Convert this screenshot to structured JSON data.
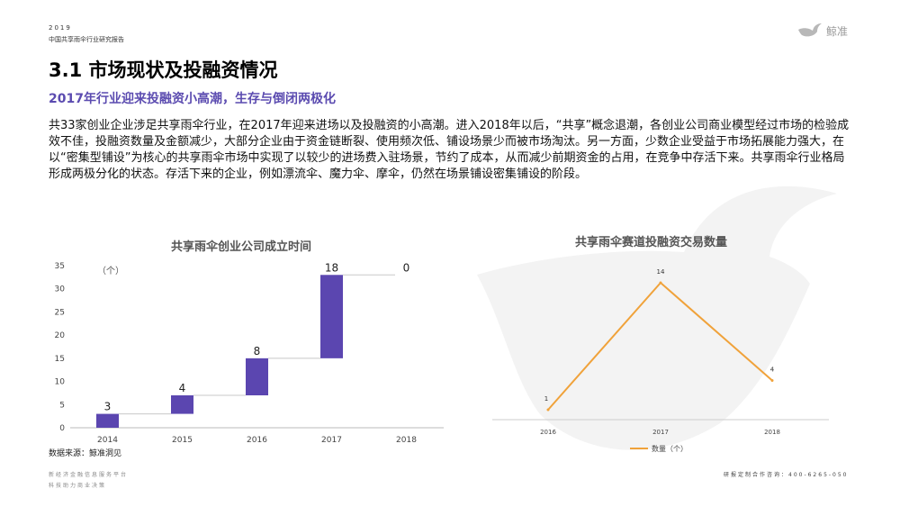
{
  "header": {
    "year": "2019",
    "report_title": "中国共享雨伞行业研究报告",
    "brand": "鲸准"
  },
  "page": {
    "title": "3.1 市场现状及投融资情况",
    "subtitle": "2017年行业迎来投融资小高潮，生存与倒闭两极化",
    "body": "共33家创业企业涉足共享雨伞行业，在2017年迎来进场以及投融资的小高潮。进入2018年以后，“共享”概念退潮，各创业公司商业模型经过市场的检验成效不佳，投融资数量及金额减少，大部分企业由于资金链断裂、使用频次低、铺设场景少而被市场淘汰。另一方面，少数企业受益于市场拓展能力强大，在以“密集型铺设”为核心的共享雨伞市场中实现了以较少的进场费入驻场景，节约了成本，从而减少前期资金的占用，在竞争中存活下来。共享雨伞行业格局形成两极分化的状态。存活下来的企业，例如漂流伞、魔力伞、摩伞，仍然在场景铺设密集铺设的阶段。"
  },
  "chart_data": [
    {
      "type": "bar",
      "subtype": "waterfall",
      "title": "共享雨伞创业公司成立时间",
      "unit_label": "（个）",
      "categories": [
        "2014",
        "2015",
        "2016",
        "2017",
        "2018"
      ],
      "values": [
        3,
        4,
        8,
        18,
        0
      ],
      "y_ticks": [
        "0",
        "5",
        "10",
        "15",
        "20",
        "25",
        "30",
        "35"
      ],
      "ylim": [
        0,
        35
      ],
      "bar_color": "#5b46b0"
    },
    {
      "type": "line",
      "title": "共享雨伞赛道投融资交易数量",
      "x": [
        "2016",
        "2017",
        "2018"
      ],
      "series": [
        {
          "name": "数量（个）",
          "values": [
            1,
            14,
            4
          ]
        }
      ],
      "line_color": "#f0a23a",
      "grid": false,
      "legend": "bottom"
    }
  ],
  "source": "数据来源：鲸准洞见",
  "footer": {
    "line1": "新经济金融信息服务平台",
    "line2": "科技助力商业决策",
    "contact": "研报定制合作咨询：400-6265-050"
  }
}
